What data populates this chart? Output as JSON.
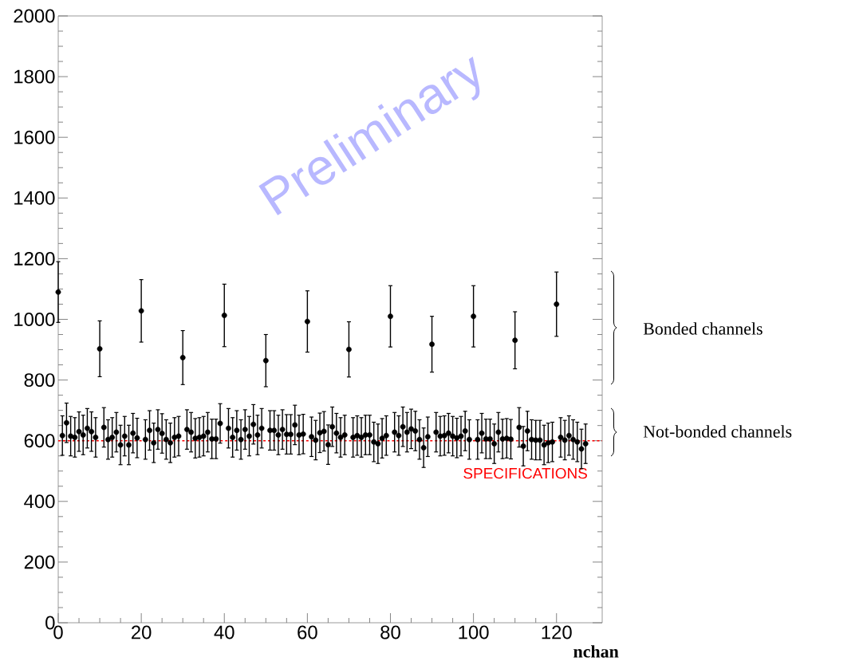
{
  "chart_data": {
    "type": "scatter",
    "xlabel": "nchan",
    "xlim": [
      0,
      131
    ],
    "ylim": [
      0,
      2000
    ],
    "xticks": [
      0,
      20,
      40,
      60,
      80,
      100,
      120
    ],
    "yticks": [
      0,
      200,
      400,
      600,
      800,
      1000,
      1200,
      1400,
      1600,
      1800,
      2000
    ],
    "marker": "circle",
    "series": [
      {
        "color": "#000000",
        "x": [
          0,
          10,
          20,
          30,
          40,
          50,
          60,
          70,
          80,
          90,
          100,
          110,
          120
        ],
        "values": [
          1090,
          903,
          1028,
          874,
          1013,
          864,
          993,
          901,
          1010,
          918,
          1010,
          931,
          1050
        ],
        "errors": [
          100,
          92,
          103,
          89,
          103,
          86,
          101,
          91,
          101,
          92,
          101,
          94,
          106
        ]
      },
      {
        "color": "#000000",
        "x": [
          1,
          2,
          3,
          4,
          5,
          6,
          7,
          8,
          9,
          11,
          12,
          13,
          14,
          15,
          16,
          17,
          18,
          19,
          21,
          22,
          23,
          24,
          25,
          26,
          27,
          28,
          29,
          31,
          32,
          33,
          34,
          35,
          36,
          37,
          38,
          39,
          41,
          42,
          43,
          44,
          45,
          46,
          47,
          48,
          49,
          51,
          52,
          53,
          54,
          55,
          56,
          57,
          58,
          59,
          61,
          62,
          63,
          64,
          65,
          66,
          67,
          68,
          69,
          71,
          72,
          73,
          74,
          75,
          76,
          77,
          78,
          79,
          81,
          82,
          83,
          84,
          85,
          86,
          87,
          88,
          89,
          91,
          92,
          93,
          94,
          95,
          96,
          97,
          98,
          99,
          101,
          102,
          103,
          104,
          105,
          106,
          107,
          108,
          109,
          111,
          112,
          113,
          114,
          115,
          116,
          117,
          118,
          119,
          121,
          122,
          123,
          124,
          125,
          126,
          127
        ],
        "values": [
          617,
          659,
          615,
          611,
          630,
          619,
          641,
          630,
          611,
          644,
          604,
          611,
          628,
          586,
          615,
          586,
          625,
          609,
          604,
          634,
          593,
          637,
          624,
          604,
          593,
          611,
          615,
          637,
          628,
          608,
          611,
          615,
          628,
          606,
          606,
          657,
          641,
          611,
          634,
          604,
          637,
          615,
          654,
          619,
          641,
          634,
          634,
          619,
          637,
          621,
          621,
          652,
          619,
          622,
          613,
          602,
          626,
          631,
          587,
          646,
          625,
          611,
          619,
          611,
          617,
          611,
          619,
          619,
          596,
          590,
          608,
          617,
          628,
          617,
          646,
          628,
          639,
          632,
          604,
          577,
          613,
          628,
          615,
          617,
          625,
          615,
          609,
          615,
          632,
          604,
          604,
          625,
          606,
          606,
          590,
          628,
          606,
          608,
          605,
          644,
          582,
          632,
          604,
          602,
          602,
          586,
          593,
          596,
          611,
          602,
          617,
          604,
          596,
          573,
          590
        ],
        "errors": [
          65,
          65,
          65,
          65,
          65,
          65,
          65,
          65,
          65,
          65,
          65,
          65,
          65,
          65,
          65,
          65,
          65,
          65,
          65,
          65,
          65,
          65,
          65,
          65,
          65,
          65,
          65,
          65,
          65,
          65,
          65,
          65,
          65,
          65,
          65,
          65,
          65,
          65,
          65,
          65,
          65,
          65,
          65,
          65,
          65,
          65,
          65,
          65,
          65,
          65,
          65,
          65,
          65,
          65,
          65,
          65,
          65,
          65,
          65,
          65,
          65,
          65,
          65,
          65,
          65,
          65,
          65,
          65,
          65,
          65,
          65,
          65,
          65,
          65,
          65,
          65,
          65,
          65,
          65,
          65,
          65,
          65,
          65,
          65,
          65,
          65,
          65,
          65,
          65,
          65,
          65,
          65,
          65,
          65,
          65,
          65,
          65,
          65,
          65,
          65,
          65,
          65,
          65,
          65,
          65,
          65,
          65,
          65,
          65,
          65,
          65,
          65,
          65,
          65,
          65
        ]
      }
    ],
    "ref_lines": [
      {
        "axis": "y",
        "value": 600,
        "label": "SPECIFICATIONS",
        "color": "#ff0000",
        "line_style": "dashed"
      }
    ],
    "annotations": [
      "Preliminary",
      "Bonded channels",
      "Not-bonded channels"
    ]
  }
}
